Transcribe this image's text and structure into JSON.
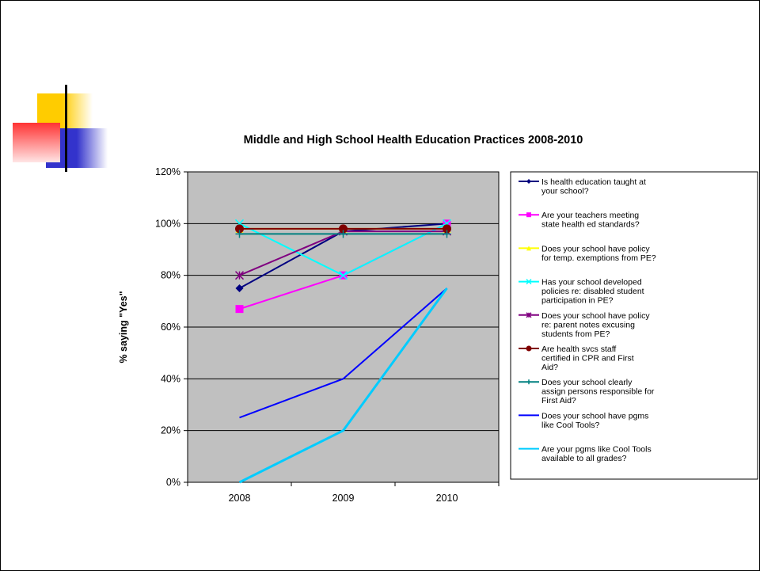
{
  "chart_data": {
    "type": "line",
    "title": "Middle and High School Health Education Practices 2008-2010",
    "ylabel": "% saying \"Yes\"",
    "xlabel": "",
    "categories": [
      "2008",
      "2009",
      "2010"
    ],
    "ylim": [
      0,
      1.2
    ],
    "yticks": [
      0,
      0.2,
      0.4,
      0.6,
      0.8,
      1.0,
      1.2
    ],
    "ytick_labels": [
      "0%",
      "20%",
      "40%",
      "60%",
      "80%",
      "100%",
      "120%"
    ],
    "grid": true,
    "legend_position": "right",
    "series": [
      {
        "name": "Is health education taught at your school?",
        "values": [
          0.75,
          0.97,
          1.0
        ],
        "color": "#000080",
        "marker": "diamond",
        "width": 2
      },
      {
        "name": "Are your teachers meeting state health ed standards?",
        "values": [
          0.67,
          0.8,
          1.0
        ],
        "color": "#ff00ff",
        "marker": "square",
        "width": 2
      },
      {
        "name": "Does your school have policy for temp. exemptions from PE?",
        "values": [
          0.98,
          0.98,
          0.98
        ],
        "color": "#ffff00",
        "marker": "triangle",
        "width": 2
      },
      {
        "name": "Has your school developed policies re: disabled student participation in PE?",
        "values": [
          1.0,
          0.8,
          1.0
        ],
        "color": "#00ffff",
        "marker": "x",
        "width": 2
      },
      {
        "name": "Does your school have policy re: parent notes excusing students from PE?",
        "values": [
          0.8,
          0.97,
          0.97
        ],
        "color": "#800080",
        "marker": "star",
        "width": 2
      },
      {
        "name": "Are health svcs staff certified in CPR and First Aid?",
        "values": [
          0.98,
          0.98,
          0.98
        ],
        "color": "#800000",
        "marker": "circle",
        "width": 2
      },
      {
        "name": "Does your school clearly assign persons responsible for First Aid?",
        "values": [
          0.96,
          0.96,
          0.96
        ],
        "color": "#008080",
        "marker": "plus",
        "width": 2
      },
      {
        "name": "Does your school have pgms like Cool Tools?",
        "values": [
          0.25,
          0.4,
          0.75
        ],
        "color": "#0000ff",
        "marker": "none",
        "width": 2
      },
      {
        "name": "Are your pgms like Cool Tools available to all grades?",
        "values": [
          0.0,
          0.2,
          0.75
        ],
        "color": "#00ccff",
        "marker": "none",
        "width": 3
      }
    ]
  }
}
